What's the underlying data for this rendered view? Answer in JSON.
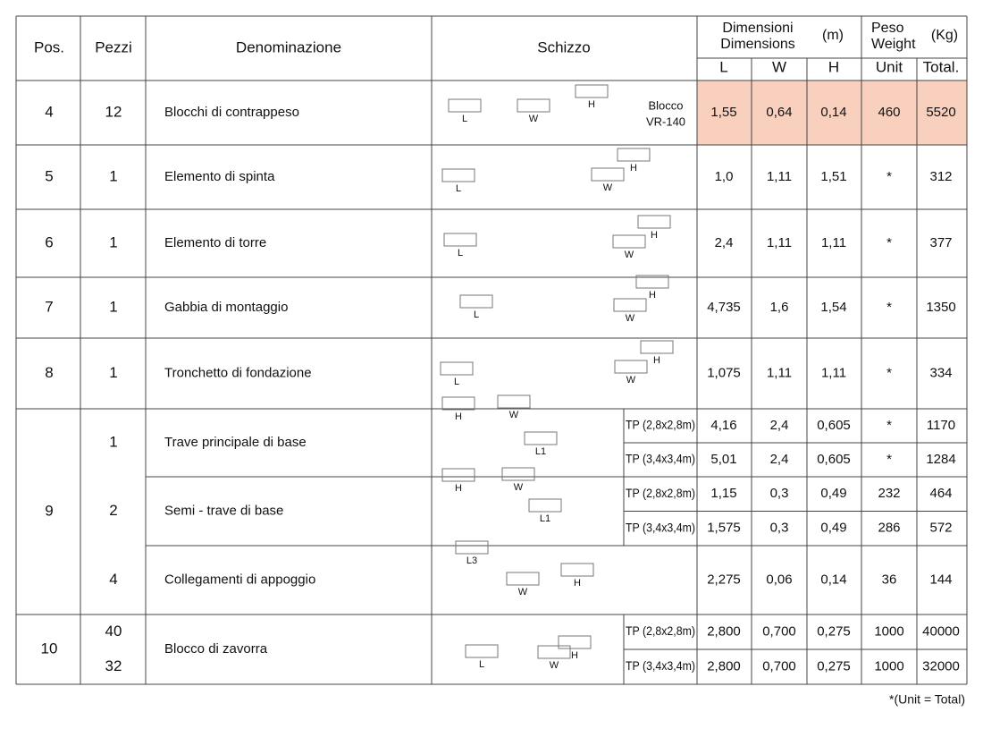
{
  "header": {
    "pos": "Pos.",
    "pezzi": "Pezzi",
    "denominazione": "Denominazione",
    "schizzo": "Schizzo",
    "dimensioni": "Dimensioni",
    "dimensions": "Dimensions",
    "unit_m": "(m)",
    "peso": "Peso",
    "weight": "Weight",
    "unit_kg": "(Kg)",
    "L": "L",
    "W": "W",
    "H": "H",
    "unit": "Unit",
    "total": "Total."
  },
  "rows": [
    {
      "pos": "4",
      "groups": [
        {
          "pezzi": [
            "12"
          ],
          "name": "Blocchi di contrappeso",
          "sketch": [
            "L",
            "W",
            "H",
            "Blocco",
            "VR-140"
          ],
          "lines": [
            {
              "L": "1,55",
              "W": "0,64",
              "H": "0,14",
              "unit": "460",
              "total": "5520"
            }
          ]
        }
      ]
    },
    {
      "pos": "5",
      "groups": [
        {
          "pezzi": [
            "1"
          ],
          "name": "Elemento di spinta",
          "sketch": [
            "L",
            "W",
            "H"
          ],
          "lines": [
            {
              "L": "1,0",
              "W": "1,11",
              "H": "1,51",
              "unit": "*",
              "total": "312"
            }
          ]
        }
      ]
    },
    {
      "pos": "6",
      "groups": [
        {
          "pezzi": [
            "1"
          ],
          "name": "Elemento di torre",
          "sketch": [
            "L",
            "W",
            "H"
          ],
          "lines": [
            {
              "L": "2,4",
              "W": "1,11",
              "H": "1,11",
              "unit": "*",
              "total": "377"
            }
          ]
        }
      ]
    },
    {
      "pos": "7",
      "groups": [
        {
          "pezzi": [
            "1"
          ],
          "name": "Gabbia di montaggio",
          "sketch": [
            "L",
            "W",
            "H"
          ],
          "lines": [
            {
              "L": "4,735",
              "W": "1,6",
              "H": "1,54",
              "unit": "*",
              "total": "1350"
            }
          ]
        }
      ]
    },
    {
      "pos": "8",
      "groups": [
        {
          "pezzi": [
            "1"
          ],
          "name": "Tronchetto di fondazione",
          "sketch": [
            "L",
            "W",
            "H"
          ],
          "lines": [
            {
              "L": "1,075",
              "W": "1,11",
              "H": "1,11",
              "unit": "*",
              "total": "334"
            }
          ]
        }
      ]
    },
    {
      "pos": "9",
      "groups": [
        {
          "pezzi": [
            "1"
          ],
          "name": "Trave principale di base",
          "sketch": [
            "H",
            "W",
            "L1"
          ],
          "lines": [
            {
              "variant": "TP (2,8x2,8m)",
              "L": "4,16",
              "W": "2,4",
              "H": "0,605",
              "unit": "*",
              "total": "1170"
            },
            {
              "variant": "TP (3,4x3,4m)",
              "L": "5,01",
              "W": "2,4",
              "H": "0,605",
              "unit": "*",
              "total": "1284"
            }
          ]
        },
        {
          "pezzi": [
            "2"
          ],
          "name": "Semi - trave di base",
          "sketch": [
            "H",
            "W",
            "L1"
          ],
          "lines": [
            {
              "variant": "TP (2,8x2,8m)",
              "L": "1,15",
              "W": "0,3",
              "H": "0,49",
              "unit": "232",
              "total": "464"
            },
            {
              "variant": "TP (3,4x3,4m)",
              "L": "1,575",
              "W": "0,3",
              "H": "0,49",
              "unit": "286",
              "total": "572"
            }
          ]
        },
        {
          "pezzi": [
            "4"
          ],
          "name": "Collegamenti di appoggio",
          "sketch": [
            "L3",
            "W",
            "H"
          ],
          "lines": [
            {
              "L": "2,275",
              "W": "0,06",
              "H": "0,14",
              "unit": "36",
              "total": "144"
            }
          ]
        }
      ]
    },
    {
      "pos": "10",
      "groups": [
        {
          "pezzi": [
            "40",
            "32"
          ],
          "name": "Blocco di zavorra",
          "sketch": [
            "L",
            "W",
            "H"
          ],
          "lines": [
            {
              "variant": "TP (2,8x2,8m)",
              "L": "2,800",
              "W": "0,700",
              "H": "0,275",
              "unit": "1000",
              "total": "40000"
            },
            {
              "variant": "TP (3,4x3,4m)",
              "L": "2,800",
              "W": "0,700",
              "H": "0,275",
              "unit": "1000",
              "total": "32000"
            }
          ]
        }
      ]
    }
  ],
  "footnote": "*(Unit = Total)"
}
